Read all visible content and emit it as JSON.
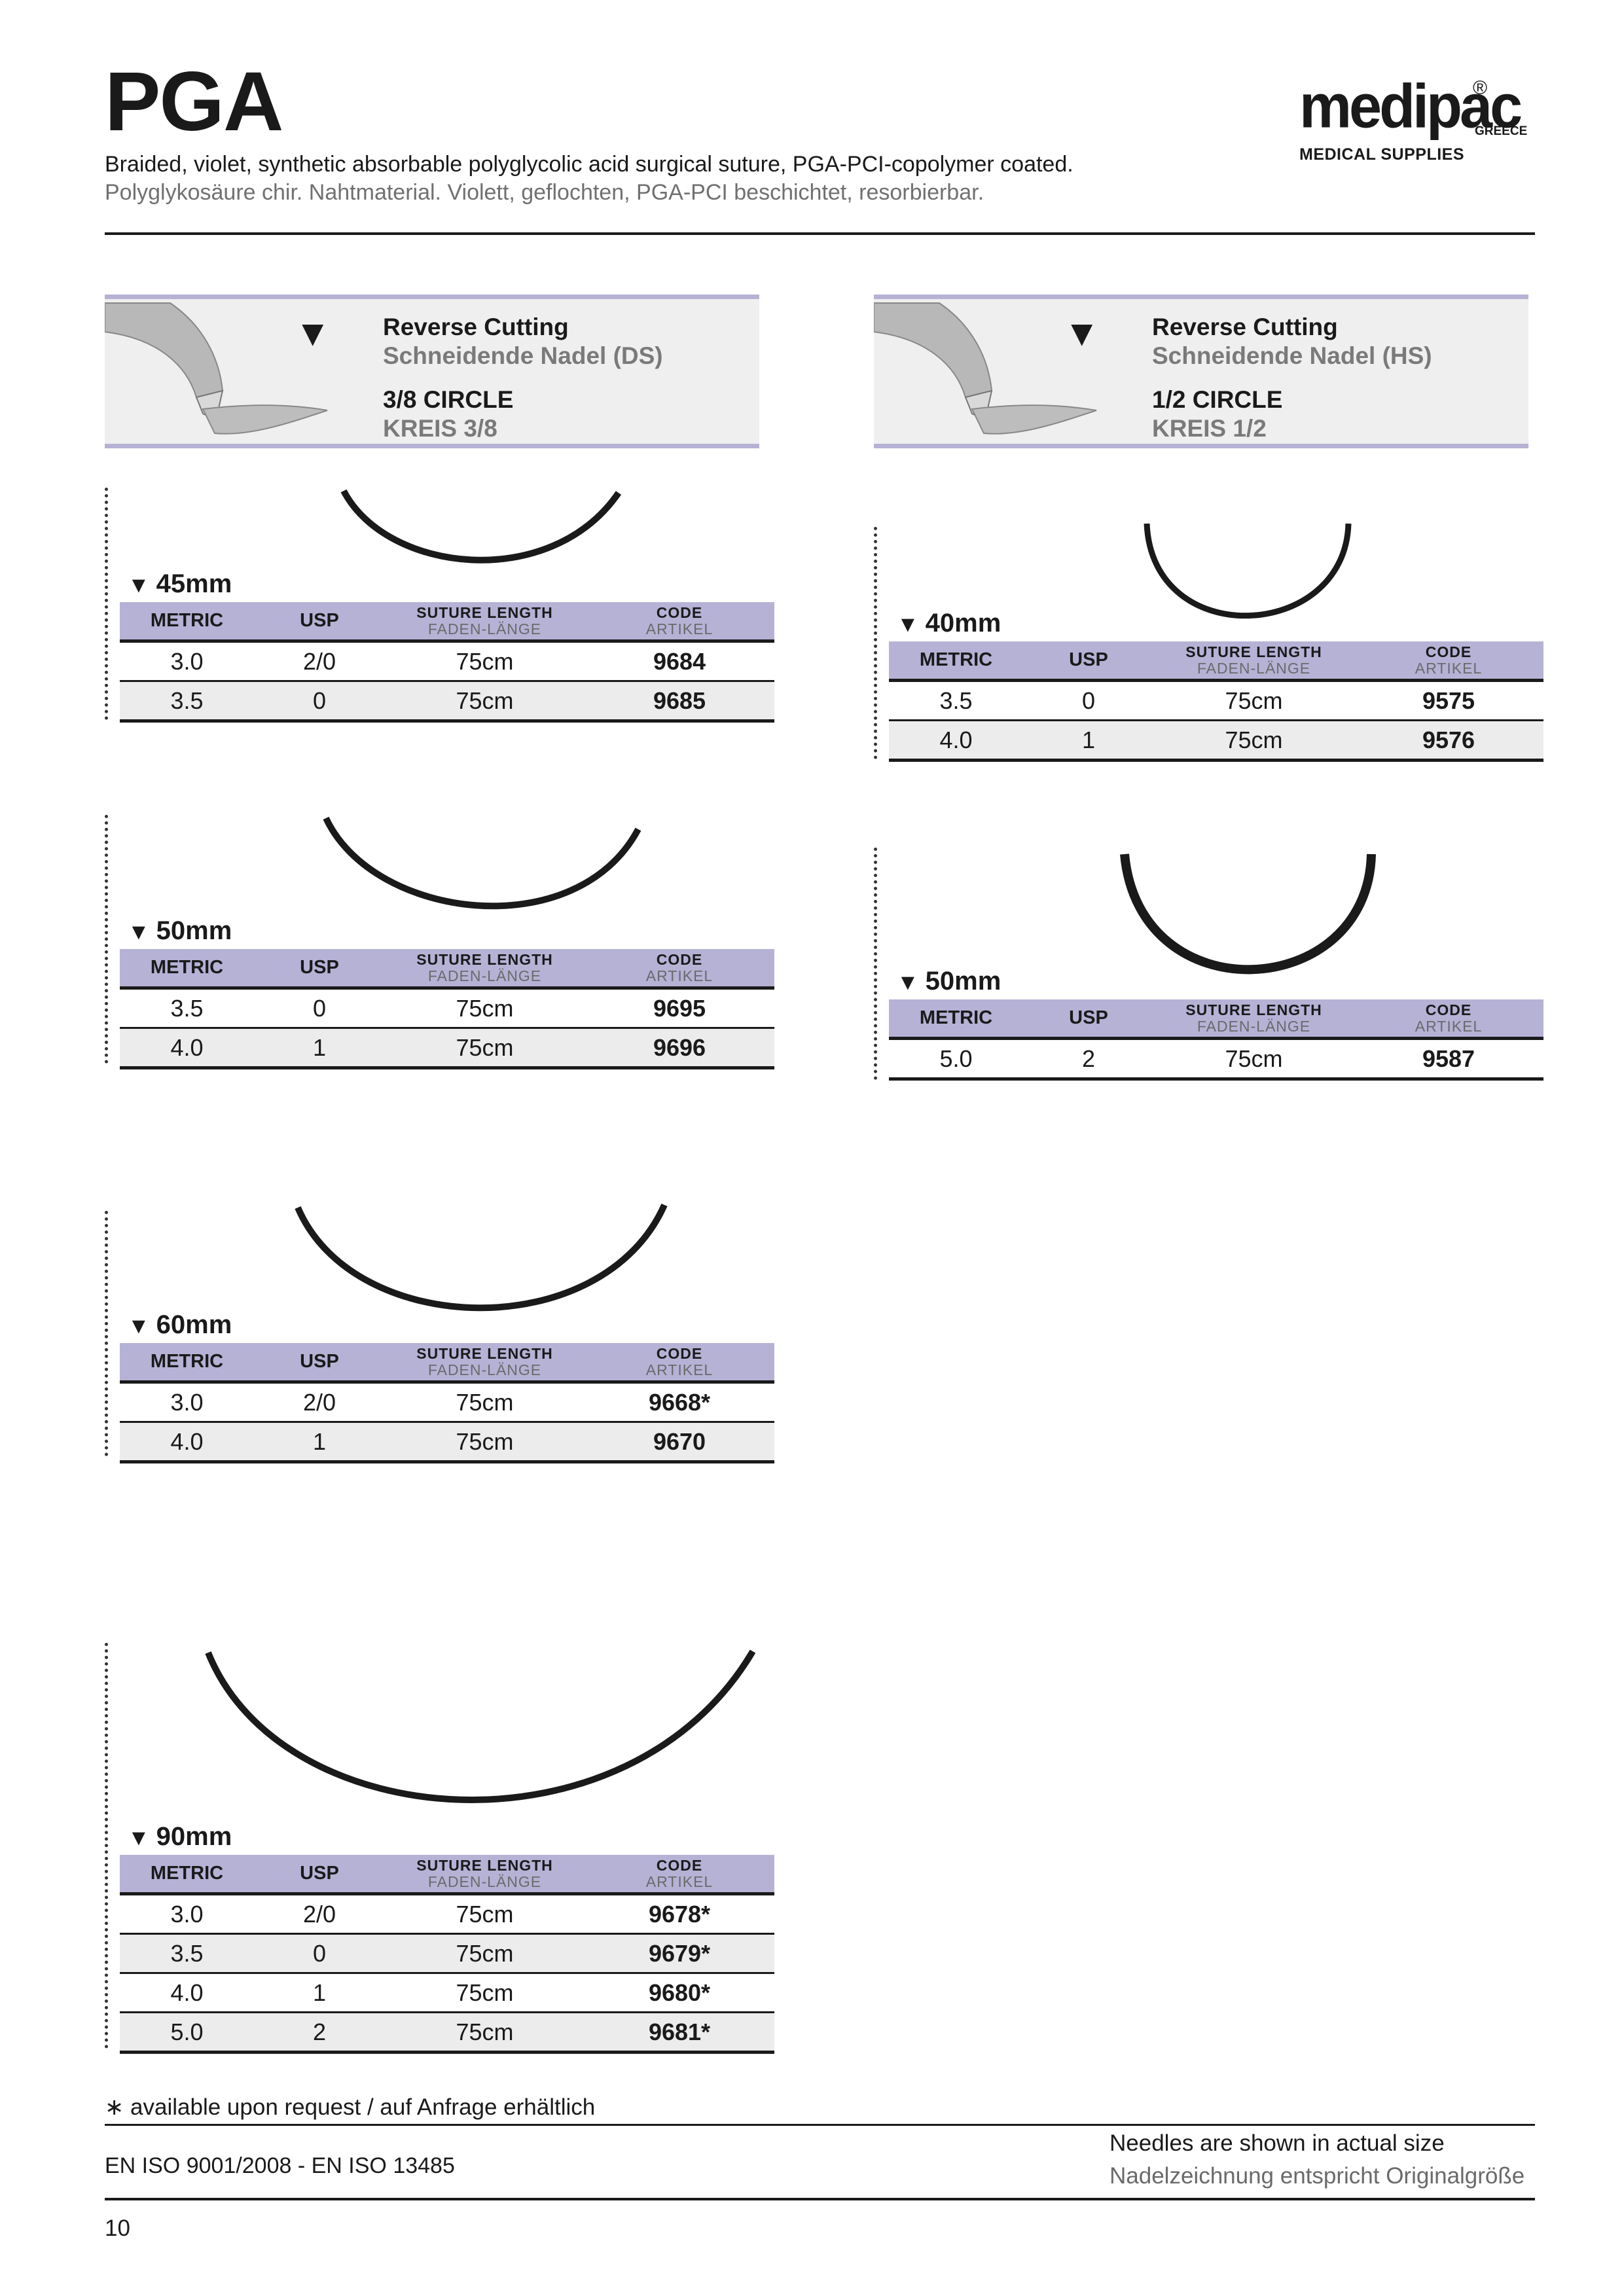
{
  "header": {
    "title": "PGA",
    "description_en": "Braided, violet, synthetic absorbable polyglycolic acid surgical suture, PGA-PCI-copolymer coated.",
    "description_de": "Polyglykosäure chir. Nahtmaterial. Violett, geflochten, PGA-PCI beschichtet, resorbierbar.",
    "logo": {
      "word": "medipac",
      "reg": "®",
      "region": "GREECE",
      "tagline": "MEDICAL SUPPLIES"
    }
  },
  "table_header": {
    "metric": "METRIC",
    "usp": "USP",
    "length_top": "SUTURE LENGTH",
    "length_sub": "FADEN-LÄNGE",
    "code_top": "CODE",
    "code_sub": "ARTIKEL"
  },
  "left": {
    "needle": {
      "arrow": "▼",
      "type_en": "Reverse Cutting",
      "type_de": "Schneidende Nadel (DS)",
      "circle_en": "3/8 CIRCLE",
      "circle_de": "KREIS 3/8"
    },
    "groups": [
      {
        "size": "45mm",
        "rows": [
          [
            "3.0",
            "2/0",
            "75cm",
            "9684"
          ],
          [
            "3.5",
            "0",
            "75cm",
            "9685"
          ]
        ]
      },
      {
        "size": "50mm",
        "rows": [
          [
            "3.5",
            "0",
            "75cm",
            "9695"
          ],
          [
            "4.0",
            "1",
            "75cm",
            "9696"
          ]
        ]
      },
      {
        "size": "60mm",
        "rows": [
          [
            "3.0",
            "2/0",
            "75cm",
            "9668*"
          ],
          [
            "4.0",
            "1",
            "75cm",
            "9670"
          ]
        ]
      },
      {
        "size": "90mm",
        "rows": [
          [
            "3.0",
            "2/0",
            "75cm",
            "9678*"
          ],
          [
            "3.5",
            "0",
            "75cm",
            "9679*"
          ],
          [
            "4.0",
            "1",
            "75cm",
            "9680*"
          ],
          [
            "5.0",
            "2",
            "75cm",
            "9681*"
          ]
        ]
      }
    ]
  },
  "right": {
    "needle": {
      "arrow": "▼",
      "type_en": "Reverse Cutting",
      "type_de": "Schneidende Nadel (HS)",
      "circle_en": "1/2 CIRCLE",
      "circle_de": "KREIS 1/2"
    },
    "groups": [
      {
        "size": "40mm",
        "rows": [
          [
            "3.5",
            "0",
            "75cm",
            "9575"
          ],
          [
            "4.0",
            "1",
            "75cm",
            "9576"
          ]
        ]
      },
      {
        "size": "50mm",
        "rows": [
          [
            "5.0",
            "2",
            "75cm",
            "9587"
          ]
        ]
      }
    ]
  },
  "footer": {
    "footnote": "∗ available upon request  /  auf Anfrage erhältlich",
    "iso": "EN ISO 9001/2008 - EN ISO 13485",
    "shown_en": "Needles are shown in actual size",
    "shown_de": "Nadelzeichnung entspricht Originalgröße",
    "page": "10"
  }
}
